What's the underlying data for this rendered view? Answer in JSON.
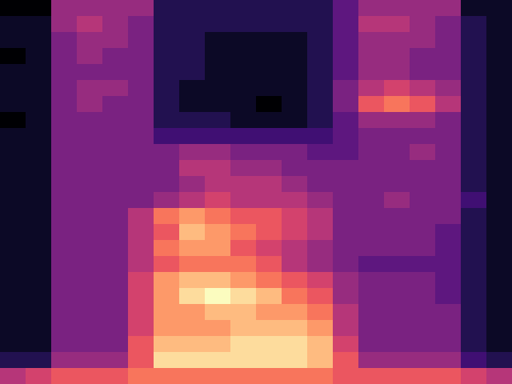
{
  "chart_data": {
    "type": "heatmap",
    "tick_labels": false,
    "cells": [
      [
        2.5,
        2.5,
        5.5,
        5.5,
        5.5,
        5.5,
        3.5,
        3.5,
        3.5,
        3.5,
        3.5,
        3.5,
        3.5,
        4.5,
        5.5,
        5.5,
        5.5,
        5.5,
        3,
        3
      ],
      [
        3,
        3,
        5.5,
        6,
        5.5,
        5,
        3.5,
        3.5,
        3.5,
        3.5,
        3.5,
        3.5,
        3.5,
        4.5,
        6,
        6,
        5.5,
        5,
        3.5,
        3
      ],
      [
        3,
        3,
        5,
        5.5,
        5.5,
        5,
        3.5,
        3.5,
        3,
        3,
        3,
        3,
        3.5,
        4.5,
        5.5,
        5.5,
        5.5,
        5,
        3.5,
        3
      ],
      [
        2.5,
        3,
        5,
        5.5,
        5,
        5,
        3.5,
        3.5,
        3,
        3,
        3,
        3,
        3.5,
        4.5,
        5.5,
        5.5,
        5,
        5,
        3.5,
        3
      ],
      [
        3,
        3,
        5,
        5,
        5,
        5,
        3.5,
        3.5,
        3,
        3,
        3,
        3,
        3.5,
        4.5,
        5.5,
        5.5,
        5,
        5,
        3.5,
        3
      ],
      [
        3,
        3,
        5,
        5.5,
        5.5,
        5,
        3.5,
        3,
        3,
        3,
        3,
        3,
        3.5,
        5,
        6,
        6.5,
        6,
        5.5,
        3.5,
        3
      ],
      [
        3,
        3,
        5,
        5.5,
        5,
        5,
        3.5,
        3,
        3,
        3,
        2.5,
        3,
        3.5,
        5,
        7,
        7.5,
        7,
        6,
        3.5,
        3
      ],
      [
        2.5,
        3,
        5,
        5,
        5,
        5,
        3.5,
        3.5,
        3.5,
        3,
        3,
        3,
        3.5,
        4.5,
        5.5,
        5.5,
        5.5,
        5,
        3.5,
        3
      ],
      [
        3,
        3,
        5,
        5,
        5,
        5,
        4,
        4,
        4,
        4,
        4,
        4,
        4,
        4.5,
        5,
        5,
        5,
        5,
        3.5,
        3
      ],
      [
        3,
        3,
        5,
        5,
        5,
        5,
        5,
        5.5,
        5.5,
        5,
        5,
        5,
        4.5,
        4.5,
        5,
        5,
        5.5,
        5,
        3.5,
        3
      ],
      [
        3,
        3,
        5,
        5,
        5,
        5,
        5,
        6,
        6,
        5.5,
        5.5,
        5,
        5,
        5,
        5,
        5,
        5,
        5,
        3.5,
        3
      ],
      [
        3,
        3,
        5,
        5,
        5,
        5,
        5,
        5.5,
        6,
        6,
        6,
        5.5,
        5,
        5,
        5,
        5,
        5,
        5,
        3.5,
        3
      ],
      [
        3,
        3,
        5,
        5,
        5,
        5,
        5.5,
        6,
        6.5,
        6,
        6,
        6,
        5.5,
        5,
        5,
        5.5,
        5,
        5,
        4,
        3
      ],
      [
        3,
        3,
        5,
        5,
        5,
        6,
        7.5,
        8,
        7.5,
        7,
        7,
        6.5,
        6,
        5,
        5,
        5,
        5,
        5,
        3.5,
        3
      ],
      [
        3,
        3,
        5,
        5,
        5,
        6,
        7,
        8.5,
        8,
        7.5,
        7,
        6.5,
        6,
        5,
        5,
        5,
        5,
        4.5,
        3.5,
        3
      ],
      [
        3,
        3,
        5,
        5,
        5,
        6,
        7.5,
        8,
        8,
        7,
        6.5,
        6,
        5.5,
        5,
        5,
        5,
        5,
        4.5,
        3.5,
        3
      ],
      [
        3,
        3,
        5,
        5,
        5,
        6,
        7,
        7.5,
        7.5,
        7.5,
        7,
        6,
        5.5,
        5,
        4.5,
        4.5,
        4.5,
        4.5,
        3.5,
        3
      ],
      [
        3,
        3,
        5,
        5,
        5,
        6.5,
        8,
        8.5,
        8.5,
        8,
        7.5,
        7,
        6.5,
        5.5,
        5,
        5,
        5,
        4.5,
        3.5,
        3
      ],
      [
        3,
        3,
        5,
        5,
        5,
        6.5,
        8,
        9,
        9.5,
        9,
        8.5,
        7.5,
        7,
        5.5,
        5,
        5,
        5,
        4.5,
        3.5,
        3
      ],
      [
        3,
        3,
        5,
        5,
        5,
        6.5,
        8,
        8,
        8.5,
        8.5,
        8,
        8,
        7.5,
        6,
        5,
        5,
        5,
        5,
        3.5,
        3
      ],
      [
        3,
        3,
        5,
        5,
        5,
        6.5,
        8,
        8,
        8,
        8.5,
        8.5,
        8.5,
        8,
        6,
        5,
        5,
        5,
        5,
        3.5,
        3
      ],
      [
        3,
        3,
        5,
        5,
        5,
        7,
        8.5,
        8.5,
        8.5,
        9,
        9,
        9,
        8.5,
        6.5,
        5,
        5,
        5,
        5,
        3.5,
        3
      ],
      [
        3.5,
        3.5,
        5.5,
        5.5,
        5.5,
        7,
        9,
        9,
        9,
        9,
        9,
        9,
        8.5,
        7,
        5.5,
        5.5,
        5.5,
        5.5,
        4,
        3.5
      ],
      [
        6,
        6.5,
        7,
        7,
        7,
        7.5,
        7.5,
        7.5,
        7.5,
        7.5,
        7.5,
        7.5,
        7.5,
        7,
        7,
        7,
        7,
        7,
        6.5,
        6
      ]
    ]
  }
}
